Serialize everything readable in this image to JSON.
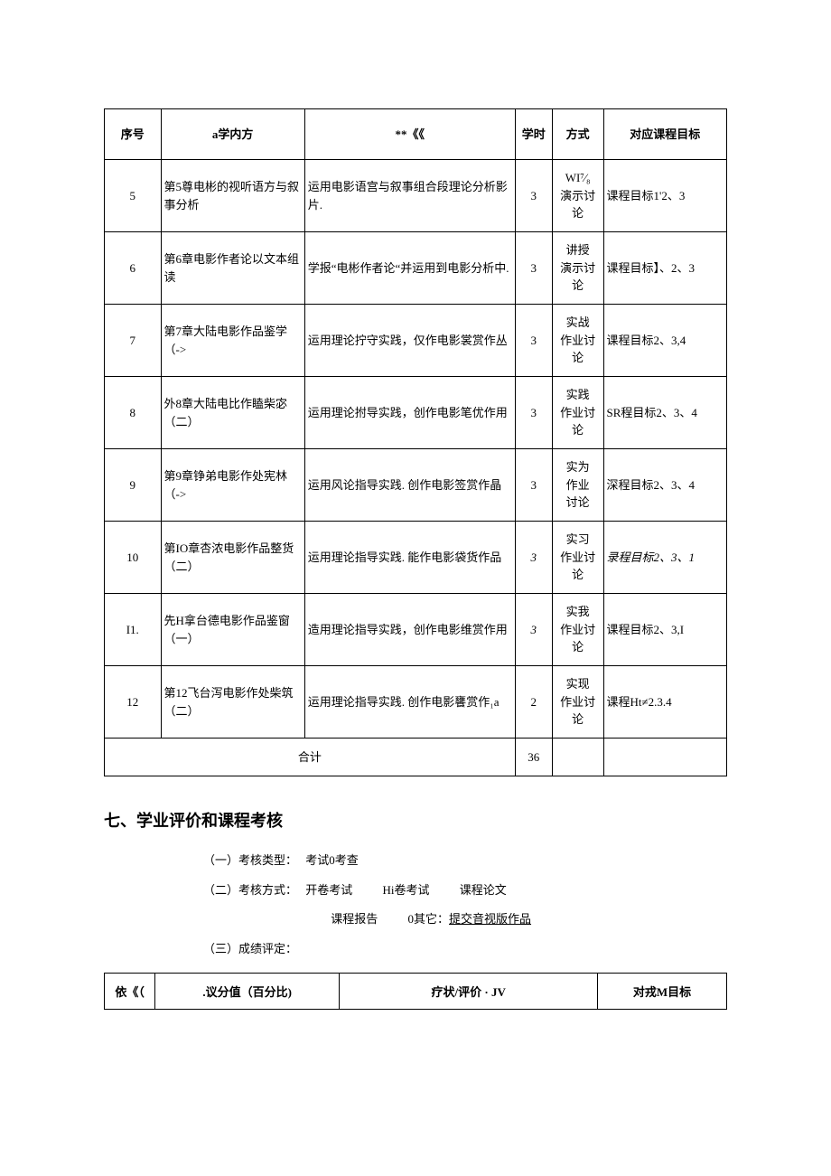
{
  "mainTable": {
    "headers": {
      "seq": "序号",
      "content": "a学内方",
      "req": "**《《",
      "hours": "学时",
      "method": "方式",
      "goal": "对应课程目标"
    },
    "rows": [
      {
        "seq": "5",
        "content": "第5尊电彬的视听语方与叙事分析",
        "req": "运用电影语宫与叙事组合段理论分析影片.",
        "hours": "3",
        "method": "WI⁷⁄₈\n演示讨论",
        "goal": "课程目标1'2、3"
      },
      {
        "seq": "6",
        "content": "第6章电影作者论以文本组读",
        "req": "学报“电彬作者论“并运用到电影分析中.",
        "hours": "3",
        "method": "讲授\n演示讨论",
        "goal": "课程目标】、2、3"
      },
      {
        "seq": "7",
        "content": "第7章大陆电影作品鉴学（->",
        "req": "运用理论拧守实践，仅作电影裳赏作丛",
        "hours": "3",
        "method": "实战\n作业讨论",
        "goal": "课程目标2、3,4"
      },
      {
        "seq": "8",
        "content": "外8章大陆电比作瞌柴宓（二）",
        "req": "运用理论拊导实践，创作电影笔优作用",
        "hours": "3",
        "method": "实践\n作业讨论",
        "goal": "SR程目标2、3、4"
      },
      {
        "seq": "9",
        "content": "第9章铮弟电影作处宪林（->",
        "req": "运用风论指导实践. 创作电影签赏作晶",
        "hours": "3",
        "method": "实为\n作业\n讨论",
        "goal": "深程目标2、3、4"
      },
      {
        "seq": "10",
        "content": "第IO章杏浓电影作品整货（二）",
        "req": "运用理论指导实践. 能作电影袋货作品",
        "hours": "3",
        "hoursItalic": true,
        "method": "实习\n作业讨论",
        "goal": "录程目标2、3、1",
        "goalItalic": true
      },
      {
        "seq": "I1.",
        "content": "先H拿台德电影作品鉴窗（一）",
        "req": "造用理论指导实践，创作电影维赏作用",
        "hours": "3",
        "hoursItalic": true,
        "method": "实我\n作业讨论",
        "goal": "课程目标2、3,I"
      },
      {
        "seq": "12",
        "content": "第12飞台泻电影作处柴筑（二）",
        "req": "运用理论指导实践. 创作电影饔赏作₁a",
        "hours": "2",
        "method": "实现\n作业讨论",
        "goal": "课程Ht≠2.3.4"
      }
    ],
    "sum": {
      "label": "合计",
      "hours": "36"
    }
  },
  "section": {
    "title": "七、学业评价和课程考核",
    "line1": {
      "label": "（一）考核类型：",
      "opts": [
        "考试0考查"
      ]
    },
    "line2": {
      "label": "（二）考核方式：",
      "opts1": [
        "开卷考试",
        "Hi卷考试",
        "课程论文"
      ],
      "opts2pre": "课程报告",
      "opts2b": "0其它：",
      "opts2u": "提交音视版作品"
    },
    "line3": {
      "label": "（三）成绩评定："
    }
  },
  "assessTable": {
    "headers": {
      "c1": "依《（",
      "c2": ".议分值（百分比)",
      "c3": "疗状/评价 · JV",
      "c4": "对戎M目标"
    }
  }
}
